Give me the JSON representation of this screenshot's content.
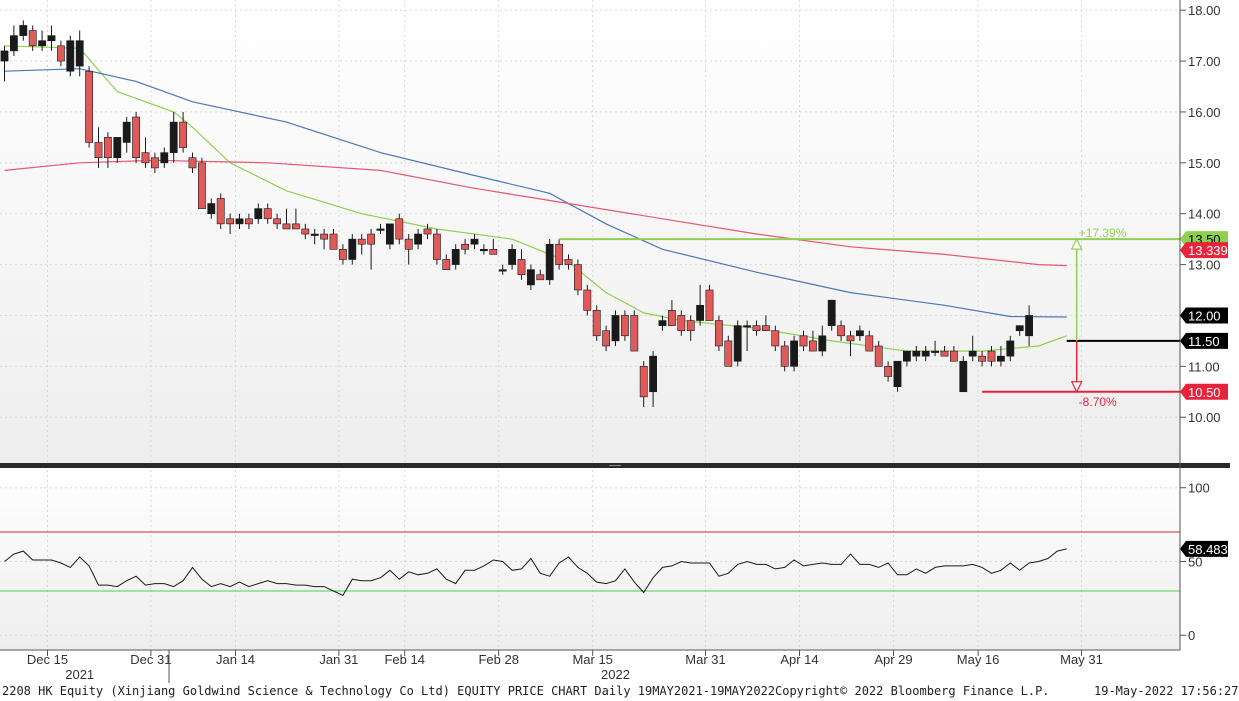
{
  "chart_data": {
    "type": "candlestick",
    "price_panel": {
      "ylim": [
        9.1,
        18.2
      ],
      "y_ticks": [
        "10.00",
        "11.00",
        "12.00",
        "13.00",
        "14.00",
        "15.00",
        "16.00",
        "17.00",
        "18.00"
      ],
      "candles": [
        {
          "o": 17.0,
          "h": 17.3,
          "l": 16.6,
          "c": 17.2
        },
        {
          "o": 17.2,
          "h": 17.7,
          "l": 17.1,
          "c": 17.5
        },
        {
          "o": 17.5,
          "h": 17.8,
          "l": 17.4,
          "c": 17.7
        },
        {
          "o": 17.6,
          "h": 17.7,
          "l": 17.2,
          "c": 17.3
        },
        {
          "o": 17.3,
          "h": 17.6,
          "l": 17.2,
          "c": 17.4
        },
        {
          "o": 17.4,
          "h": 17.7,
          "l": 17.2,
          "c": 17.5
        },
        {
          "o": 17.3,
          "h": 17.4,
          "l": 16.9,
          "c": 17.0
        },
        {
          "o": 16.8,
          "h": 17.5,
          "l": 16.7,
          "c": 17.4
        },
        {
          "o": 16.9,
          "h": 17.6,
          "l": 16.7,
          "c": 17.4
        },
        {
          "o": 16.8,
          "h": 16.9,
          "l": 15.3,
          "c": 15.4
        },
        {
          "o": 15.4,
          "h": 15.7,
          "l": 14.9,
          "c": 15.1
        },
        {
          "o": 15.5,
          "h": 15.6,
          "l": 14.9,
          "c": 15.1
        },
        {
          "o": 15.1,
          "h": 15.5,
          "l": 15.0,
          "c": 15.5
        },
        {
          "o": 15.4,
          "h": 15.9,
          "l": 15.2,
          "c": 15.8
        },
        {
          "o": 15.9,
          "h": 16.0,
          "l": 15.0,
          "c": 15.1
        },
        {
          "o": 15.2,
          "h": 15.5,
          "l": 14.9,
          "c": 15.0
        },
        {
          "o": 15.1,
          "h": 15.2,
          "l": 14.8,
          "c": 14.9
        },
        {
          "o": 15.0,
          "h": 15.3,
          "l": 14.9,
          "c": 15.2
        },
        {
          "o": 15.2,
          "h": 16.0,
          "l": 15.0,
          "c": 15.8
        },
        {
          "o": 15.8,
          "h": 16.0,
          "l": 15.2,
          "c": 15.3
        },
        {
          "o": 15.1,
          "h": 15.2,
          "l": 14.8,
          "c": 14.9
        },
        {
          "o": 15.0,
          "h": 15.1,
          "l": 14.1,
          "c": 14.1
        },
        {
          "o": 14.0,
          "h": 14.3,
          "l": 13.9,
          "c": 14.2
        },
        {
          "o": 14.3,
          "h": 14.4,
          "l": 13.7,
          "c": 13.8
        },
        {
          "o": 13.9,
          "h": 14.0,
          "l": 13.6,
          "c": 13.8
        },
        {
          "o": 13.8,
          "h": 14.0,
          "l": 13.7,
          "c": 13.9
        },
        {
          "o": 13.9,
          "h": 14.0,
          "l": 13.7,
          "c": 13.8
        },
        {
          "o": 13.9,
          "h": 14.2,
          "l": 13.8,
          "c": 14.1
        },
        {
          "o": 14.1,
          "h": 14.2,
          "l": 13.8,
          "c": 13.9
        },
        {
          "o": 13.9,
          "h": 14.0,
          "l": 13.7,
          "c": 13.8
        },
        {
          "o": 13.8,
          "h": 14.1,
          "l": 13.7,
          "c": 13.7
        },
        {
          "o": 13.8,
          "h": 14.1,
          "l": 13.7,
          "c": 13.7
        },
        {
          "o": 13.7,
          "h": 13.8,
          "l": 13.5,
          "c": 13.6
        },
        {
          "o": 13.6,
          "h": 13.7,
          "l": 13.4,
          "c": 13.6
        },
        {
          "o": 13.6,
          "h": 13.7,
          "l": 13.3,
          "c": 13.5
        },
        {
          "o": 13.6,
          "h": 13.7,
          "l": 13.3,
          "c": 13.3
        },
        {
          "o": 13.3,
          "h": 13.4,
          "l": 13.0,
          "c": 13.1
        },
        {
          "o": 13.1,
          "h": 13.6,
          "l": 13.0,
          "c": 13.5
        },
        {
          "o": 13.5,
          "h": 13.6,
          "l": 13.2,
          "c": 13.4
        },
        {
          "o": 13.6,
          "h": 13.7,
          "l": 12.9,
          "c": 13.4
        },
        {
          "o": 13.7,
          "h": 13.8,
          "l": 13.6,
          "c": 13.7
        },
        {
          "o": 13.4,
          "h": 13.8,
          "l": 13.3,
          "c": 13.8
        },
        {
          "o": 13.9,
          "h": 14.0,
          "l": 13.4,
          "c": 13.5
        },
        {
          "o": 13.5,
          "h": 13.6,
          "l": 13.0,
          "c": 13.3
        },
        {
          "o": 13.4,
          "h": 13.7,
          "l": 13.3,
          "c": 13.6
        },
        {
          "o": 13.7,
          "h": 13.8,
          "l": 13.5,
          "c": 13.6
        },
        {
          "o": 13.6,
          "h": 13.7,
          "l": 13.0,
          "c": 13.1
        },
        {
          "o": 13.1,
          "h": 13.2,
          "l": 12.9,
          "c": 12.9
        },
        {
          "o": 13.0,
          "h": 13.4,
          "l": 12.9,
          "c": 13.3
        },
        {
          "o": 13.4,
          "h": 13.5,
          "l": 13.2,
          "c": 13.3
        },
        {
          "o": 13.4,
          "h": 13.6,
          "l": 13.3,
          "c": 13.5
        },
        {
          "o": 13.3,
          "h": 13.4,
          "l": 13.2,
          "c": 13.3
        },
        {
          "o": 13.3,
          "h": 13.5,
          "l": 13.2,
          "c": 13.2
        },
        {
          "o": 12.9,
          "h": 13.0,
          "l": 12.8,
          "c": 12.9
        },
        {
          "o": 13.0,
          "h": 13.4,
          "l": 12.9,
          "c": 13.3
        },
        {
          "o": 13.1,
          "h": 13.3,
          "l": 12.7,
          "c": 12.8
        },
        {
          "o": 12.6,
          "h": 13.0,
          "l": 12.5,
          "c": 12.9
        },
        {
          "o": 12.8,
          "h": 12.9,
          "l": 12.7,
          "c": 12.7
        },
        {
          "o": 12.7,
          "h": 13.5,
          "l": 12.6,
          "c": 13.4
        },
        {
          "o": 13.4,
          "h": 13.5,
          "l": 12.9,
          "c": 13.0
        },
        {
          "o": 13.1,
          "h": 13.2,
          "l": 12.9,
          "c": 13.0
        },
        {
          "o": 13.0,
          "h": 13.1,
          "l": 12.4,
          "c": 12.5
        },
        {
          "o": 12.5,
          "h": 12.6,
          "l": 12.0,
          "c": 12.1
        },
        {
          "o": 12.1,
          "h": 12.2,
          "l": 11.5,
          "c": 11.6
        },
        {
          "o": 11.7,
          "h": 11.8,
          "l": 11.3,
          "c": 11.4
        },
        {
          "o": 11.5,
          "h": 12.1,
          "l": 11.4,
          "c": 12.0
        },
        {
          "o": 12.0,
          "h": 12.1,
          "l": 11.5,
          "c": 11.6
        },
        {
          "o": 12.0,
          "h": 12.1,
          "l": 11.3,
          "c": 11.3
        },
        {
          "o": 11.0,
          "h": 11.1,
          "l": 10.2,
          "c": 10.4
        },
        {
          "o": 10.5,
          "h": 11.3,
          "l": 10.2,
          "c": 11.2
        },
        {
          "o": 11.8,
          "h": 12.0,
          "l": 11.7,
          "c": 11.9
        },
        {
          "o": 12.1,
          "h": 12.3,
          "l": 11.8,
          "c": 11.8
        },
        {
          "o": 12.0,
          "h": 12.1,
          "l": 11.6,
          "c": 11.7
        },
        {
          "o": 11.9,
          "h": 12.0,
          "l": 11.5,
          "c": 11.7
        },
        {
          "o": 11.9,
          "h": 12.6,
          "l": 11.8,
          "c": 12.2
        },
        {
          "o": 12.5,
          "h": 12.6,
          "l": 11.9,
          "c": 11.9
        },
        {
          "o": 11.9,
          "h": 12.0,
          "l": 11.3,
          "c": 11.4
        },
        {
          "o": 11.5,
          "h": 11.6,
          "l": 11.0,
          "c": 11.0
        },
        {
          "o": 11.1,
          "h": 11.9,
          "l": 11.0,
          "c": 11.8
        },
        {
          "o": 11.8,
          "h": 11.9,
          "l": 11.3,
          "c": 11.8
        },
        {
          "o": 11.8,
          "h": 11.9,
          "l": 11.6,
          "c": 11.7
        },
        {
          "o": 11.8,
          "h": 12.0,
          "l": 11.7,
          "c": 11.7
        },
        {
          "o": 11.7,
          "h": 11.8,
          "l": 11.3,
          "c": 11.4
        },
        {
          "o": 11.4,
          "h": 11.5,
          "l": 10.9,
          "c": 11.0
        },
        {
          "o": 11.0,
          "h": 11.6,
          "l": 10.9,
          "c": 11.5
        },
        {
          "o": 11.6,
          "h": 11.7,
          "l": 11.3,
          "c": 11.4
        },
        {
          "o": 11.5,
          "h": 11.7,
          "l": 11.3,
          "c": 11.3
        },
        {
          "o": 11.3,
          "h": 11.8,
          "l": 11.2,
          "c": 11.6
        },
        {
          "o": 11.8,
          "h": 12.3,
          "l": 11.7,
          "c": 12.3
        },
        {
          "o": 11.8,
          "h": 11.9,
          "l": 11.5,
          "c": 11.6
        },
        {
          "o": 11.6,
          "h": 11.7,
          "l": 11.2,
          "c": 11.5
        },
        {
          "o": 11.6,
          "h": 11.8,
          "l": 11.5,
          "c": 11.7
        },
        {
          "o": 11.6,
          "h": 11.7,
          "l": 11.3,
          "c": 11.3
        },
        {
          "o": 11.4,
          "h": 11.5,
          "l": 11.0,
          "c": 11.0
        },
        {
          "o": 11.0,
          "h": 11.1,
          "l": 10.7,
          "c": 10.8
        },
        {
          "o": 10.6,
          "h": 11.1,
          "l": 10.5,
          "c": 11.1
        },
        {
          "o": 11.1,
          "h": 11.3,
          "l": 11.0,
          "c": 11.3
        },
        {
          "o": 11.2,
          "h": 11.4,
          "l": 11.1,
          "c": 11.3
        },
        {
          "o": 11.2,
          "h": 11.4,
          "l": 11.1,
          "c": 11.3
        },
        {
          "o": 11.3,
          "h": 11.5,
          "l": 11.2,
          "c": 11.3
        },
        {
          "o": 11.3,
          "h": 11.4,
          "l": 11.2,
          "c": 11.2
        },
        {
          "o": 11.3,
          "h": 11.4,
          "l": 11.1,
          "c": 11.1
        },
        {
          "o": 10.5,
          "h": 11.2,
          "l": 10.5,
          "c": 11.1
        },
        {
          "o": 11.2,
          "h": 11.6,
          "l": 11.1,
          "c": 11.3
        },
        {
          "o": 11.2,
          "h": 11.3,
          "l": 11.0,
          "c": 11.1
        },
        {
          "o": 11.3,
          "h": 11.4,
          "l": 11.0,
          "c": 11.1
        },
        {
          "o": 11.1,
          "h": 11.4,
          "l": 11.0,
          "c": 11.2
        },
        {
          "o": 11.2,
          "h": 11.6,
          "l": 11.1,
          "c": 11.5
        },
        {
          "o": 11.7,
          "h": 11.8,
          "l": 11.6,
          "c": 11.8
        },
        {
          "o": 11.6,
          "h": 12.2,
          "l": 11.4,
          "c": 12.0
        }
      ],
      "moving_averages": [
        {
          "color": "#8fd14f",
          "points": [
            [
              0,
              17.3
            ],
            [
              8,
              17.25
            ],
            [
              12,
              16.4
            ],
            [
              18,
              16.0
            ],
            [
              20,
              15.7
            ],
            [
              24,
              15.0
            ],
            [
              30,
              14.45
            ],
            [
              38,
              14.0
            ],
            [
              46,
              13.7
            ],
            [
              54,
              13.5
            ],
            [
              60,
              13.05
            ],
            [
              64,
              12.45
            ],
            [
              68,
              12.05
            ],
            [
              72,
              11.9
            ],
            [
              80,
              11.75
            ],
            [
              88,
              11.5
            ],
            [
              96,
              11.3
            ],
            [
              104,
              11.3
            ],
            [
              110,
              11.4
            ],
            [
              113,
              11.6
            ]
          ]
        },
        {
          "color": "#4a78b5",
          "points": [
            [
              0,
              16.8
            ],
            [
              8,
              16.85
            ],
            [
              14,
              16.6
            ],
            [
              20,
              16.2
            ],
            [
              30,
              15.8
            ],
            [
              40,
              15.2
            ],
            [
              50,
              14.75
            ],
            [
              58,
              14.4
            ],
            [
              64,
              13.8
            ],
            [
              70,
              13.3
            ],
            [
              80,
              12.85
            ],
            [
              90,
              12.45
            ],
            [
              100,
              12.2
            ],
            [
              107,
              11.98
            ],
            [
              113,
              11.97
            ]
          ]
        },
        {
          "color": "#e8576f",
          "points": [
            [
              0,
              14.85
            ],
            [
              8,
              15.0
            ],
            [
              16,
              15.05
            ],
            [
              28,
              15.0
            ],
            [
              40,
              14.85
            ],
            [
              50,
              14.5
            ],
            [
              60,
              14.2
            ],
            [
              70,
              13.9
            ],
            [
              80,
              13.6
            ],
            [
              90,
              13.35
            ],
            [
              100,
              13.2
            ],
            [
              110,
              13.0
            ],
            [
              113,
              12.98
            ]
          ]
        }
      ],
      "levels": [
        {
          "value": 13.5,
          "label": "13.50",
          "color": "#8fd14f",
          "from": 59
        },
        {
          "value": 11.5,
          "label": "11.50",
          "color": "#000000",
          "from": 113
        },
        {
          "value": 10.5,
          "label": "10.50",
          "color": "#e8243c",
          "from": 104
        }
      ],
      "change_up": "+17.39%",
      "change_down": "-8.70%",
      "price_tags": [
        {
          "value": 13.5,
          "label": "13.50",
          "bg": "#8fd14f",
          "fg": "#000000"
        },
        {
          "value": 13.339,
          "label": "13.339",
          "bg": "#e8243c",
          "fg": "#ffffff"
        },
        {
          "value": 12.0,
          "label": "12.00",
          "bg": "#000000",
          "fg": "#ffffff"
        },
        {
          "value": 11.5,
          "label": "11.50",
          "bg": "#000000",
          "fg": "#ffffff"
        },
        {
          "value": 10.5,
          "label": "10.50",
          "bg": "#e8243c",
          "fg": "#ffffff"
        }
      ]
    },
    "rsi_panel": {
      "ylim": [
        -10,
        112
      ],
      "y_ticks": [
        "0",
        "50",
        "100"
      ],
      "upper_line": 70,
      "lower_line": 30,
      "last_label": "58.483",
      "values": [
        50,
        55,
        57,
        51,
        51,
        51,
        49,
        46,
        53,
        47,
        34,
        34,
        33,
        37,
        40,
        34,
        35,
        35,
        33,
        37,
        46,
        38,
        33,
        35,
        33,
        36,
        33,
        35,
        37,
        35,
        35,
        34,
        34,
        33,
        33,
        30,
        27,
        38,
        37,
        37,
        39,
        44,
        38,
        43,
        41,
        42,
        45,
        38,
        35,
        44,
        44,
        47,
        51,
        50,
        44,
        45,
        52,
        42,
        40,
        49,
        53,
        46,
        42,
        36,
        35,
        37,
        45,
        36,
        29,
        39,
        46,
        47,
        50,
        49,
        49,
        49,
        40,
        42,
        48,
        50,
        48,
        48,
        45,
        46,
        51,
        47,
        48,
        49,
        48,
        48,
        55,
        48,
        48,
        46,
        49,
        41,
        41,
        45,
        42,
        46,
        47,
        47,
        47,
        48,
        46,
        42,
        44,
        49,
        44,
        49,
        50,
        52,
        57,
        58.5
      ]
    },
    "x_tick_labels": [
      "Dec 15",
      "Dec 31",
      "Jan 14",
      "Jan 31",
      "Feb 14",
      "Feb 28",
      "Mar 15",
      "Mar 31",
      "Apr 14",
      "Apr 29",
      "May 16",
      "May 31"
    ],
    "x_tick_index": [
      5,
      16,
      25,
      36,
      43,
      53,
      63,
      75,
      85,
      95,
      104,
      115
    ],
    "year_labels": [
      {
        "label": "2021",
        "index": 8
      },
      {
        "label": "2022",
        "index": 65
      }
    ]
  },
  "colors": {
    "up": "#1a1a1a",
    "down": "#e05a5a",
    "grid": "#d8d8d8",
    "bg_top": "#ffffff",
    "bg_bottom": "#f0f0f0"
  },
  "footer": {
    "title": "2208 HK Equity (Xinjiang Goldwind Science & Technology Co Ltd) EQUITY PRICE CHART  Daily 19MAY2021-19MAY2022",
    "copyright": "Copyright© 2022 Bloomberg Finance L.P.",
    "timestamp": "19-May-2022 17:56:27"
  }
}
